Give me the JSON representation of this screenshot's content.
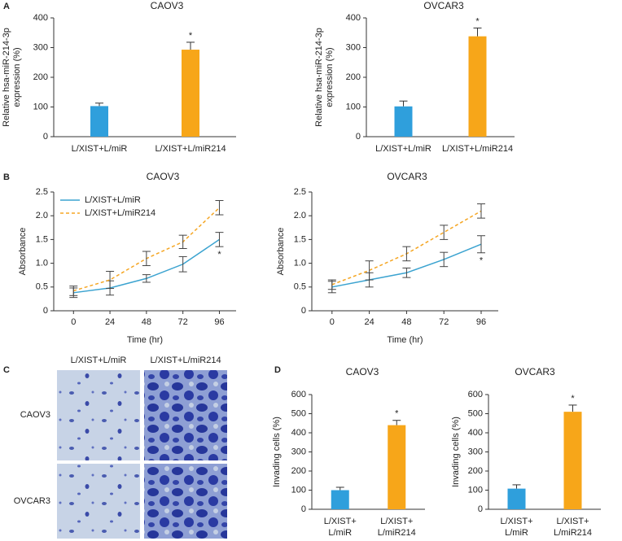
{
  "panel_labels": [
    "A",
    "B",
    "C",
    "D"
  ],
  "micrograph": {
    "columns": [
      "L/XIST+L/miR",
      "L/XIST+L/miR214"
    ],
    "rows": [
      "CAOV3",
      "OVCAR3"
    ]
  },
  "chart_data": [
    {
      "type": "bar",
      "title": "CAOV3",
      "ylabel": [
        "Relative hsa-miR-214-3p",
        "expression (%)"
      ],
      "categories": [
        "L/XIST+L/miR",
        "L/XIST+L/miR214"
      ],
      "values": [
        103,
        293
      ],
      "errors": [
        10,
        25
      ],
      "colors": [
        "#2f9fdc",
        "#f7a619"
      ],
      "annotation": "*",
      "ylim": [
        0,
        400
      ],
      "yticks": [
        0,
        100,
        200,
        300,
        400
      ]
    },
    {
      "type": "bar",
      "title": "OVCAR3",
      "ylabel": [
        "Relative hsa-miR-214-3p",
        "expression (%)"
      ],
      "categories": [
        "L/XIST+L/miR",
        "L/XIST+L/miR214"
      ],
      "values": [
        102,
        338
      ],
      "errors": [
        18,
        28
      ],
      "colors": [
        "#2f9fdc",
        "#f7a619"
      ],
      "annotation": "*",
      "ylim": [
        0,
        400
      ],
      "yticks": [
        0,
        100,
        200,
        300,
        400
      ]
    },
    {
      "type": "line",
      "title": "CAOV3",
      "xlabel": "Time (hr)",
      "ylabel": [
        "Absorbance"
      ],
      "legend": "upper left",
      "x": [
        0,
        24,
        48,
        72,
        96
      ],
      "series": [
        {
          "name": "L/XIST+L/miR",
          "color": "#3ba3d0",
          "dash": false,
          "values": [
            0.38,
            0.48,
            0.68,
            0.98,
            1.5
          ],
          "errors": [
            0.1,
            0.15,
            0.08,
            0.16,
            0.15
          ]
        },
        {
          "name": "L/XIST+L/miR214",
          "color": "#f5a623",
          "dash": true,
          "values": [
            0.42,
            0.65,
            1.1,
            1.45,
            2.17
          ],
          "errors": [
            0.1,
            0.18,
            0.15,
            0.14,
            0.15
          ]
        }
      ],
      "annotation": "*",
      "xlim": [
        -13,
        107
      ],
      "xticks": [
        0,
        24,
        48,
        72,
        96
      ],
      "ylim": [
        0,
        2.5
      ],
      "yticks": [
        0,
        0.5,
        {
          "value": 1,
          "label": "1.0"
        },
        1.5,
        {
          "value": 2,
          "label": "2.0"
        },
        2.5
      ]
    },
    {
      "type": "line",
      "title": "OVCAR3",
      "xlabel": "Time (hr)",
      "ylabel": [
        "Absorbance"
      ],
      "x": [
        0,
        24,
        48,
        72,
        96
      ],
      "series": [
        {
          "name": "L/XIST+L/miR",
          "color": "#3ba3d0",
          "dash": false,
          "values": [
            0.5,
            0.65,
            0.8,
            1.08,
            1.4
          ],
          "errors": [
            0.12,
            0.15,
            0.1,
            0.15,
            0.18
          ]
        },
        {
          "name": "L/XIST+L/miR214",
          "color": "#f5a623",
          "dash": true,
          "values": [
            0.55,
            0.85,
            1.2,
            1.65,
            2.1
          ],
          "errors": [
            0.1,
            0.2,
            0.15,
            0.15,
            0.15
          ]
        }
      ],
      "annotation": "*",
      "xlim": [
        -13,
        107
      ],
      "xticks": [
        0,
        24,
        48,
        72,
        96
      ],
      "ylim": [
        0,
        2.5
      ],
      "yticks": [
        0,
        0.5,
        {
          "value": 1,
          "label": "1.0"
        },
        1.5,
        {
          "value": 2,
          "label": "2.0"
        },
        2.5
      ]
    },
    {
      "type": "bar",
      "title": "CAOV3",
      "ylabel": [
        "Invading cells (%)"
      ],
      "categories": [
        "L/XIST+\nL/miR",
        "L/XIST+\nL/miR214"
      ],
      "values": [
        100,
        440
      ],
      "errors": [
        15,
        25
      ],
      "colors": [
        "#2f9fdc",
        "#f7a619"
      ],
      "annotation": "*",
      "ylim": [
        0,
        600
      ],
      "yticks": [
        0,
        100,
        200,
        300,
        400,
        500,
        600
      ]
    },
    {
      "type": "bar",
      "title": "OVCAR3",
      "ylabel": [
        "Invading cells (%)"
      ],
      "categories": [
        "L/XIST+\nL/miR",
        "L/XIST+\nL/miR214"
      ],
      "values": [
        108,
        510
      ],
      "errors": [
        20,
        35
      ],
      "colors": [
        "#2f9fdc",
        "#f7a619"
      ],
      "annotation": "*",
      "ylim": [
        0,
        600
      ],
      "yticks": [
        0,
        100,
        200,
        300,
        400,
        500,
        600
      ]
    }
  ]
}
